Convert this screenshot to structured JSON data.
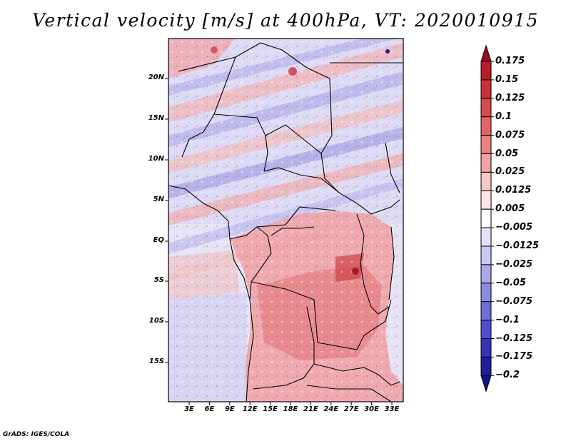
{
  "title": "Vertical velocity [m/s] at 400hPa, VT: 2020010915",
  "credit": "GrADS: IGES/COLA",
  "map": {
    "lat_labels": [
      "20N",
      "15N",
      "10N",
      "5N",
      "EQ",
      "5S",
      "10S",
      "15S"
    ],
    "lon_labels": [
      "3E",
      "6E",
      "9E",
      "12E",
      "15E",
      "18E",
      "21E",
      "24E",
      "27E",
      "30E",
      "33E"
    ]
  },
  "colorbar": {
    "labels": [
      "0.175",
      "0.15",
      "0.125",
      "0.1",
      "0.075",
      "0.05",
      "0.025",
      "0.0125",
      "0.005",
      "−0.005",
      "−0.0125",
      "−0.025",
      "−0.05",
      "−0.075",
      "−0.1",
      "−0.125",
      "−0.175",
      "−0.2"
    ],
    "colors": [
      "#9b0a1a",
      "#b81e2a",
      "#c8333a",
      "#d74b4b",
      "#e26565",
      "#ea8080",
      "#f1a3a3",
      "#f7c6c6",
      "#fce4e4",
      "#ffffff",
      "#e2e2fa",
      "#c8c8f2",
      "#a8a8ea",
      "#8a8ae2",
      "#6e6ed8",
      "#5050cc",
      "#3434b8",
      "#1e1e9c",
      "#14148a"
    ]
  }
}
